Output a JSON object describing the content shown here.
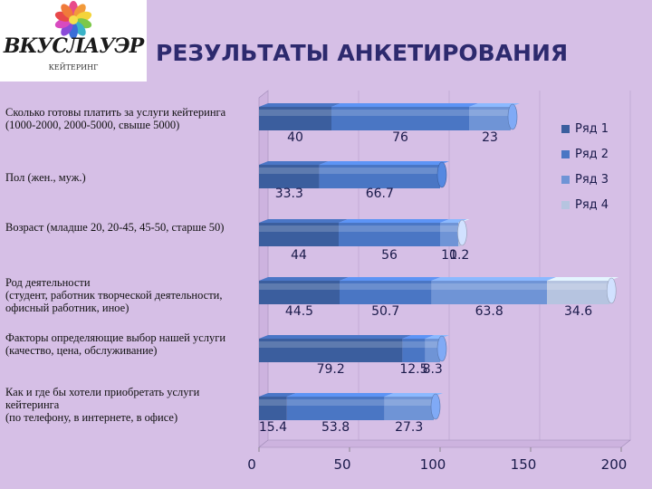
{
  "header": {
    "title": "РЕЗУЛЬТАТЫ АНКЕТИРОВАНИЯ",
    "logo_text": "ВКУСЛАУЭР",
    "logo_subtext": "КЕЙТЕРИНГ"
  },
  "chart_data": {
    "type": "bar",
    "orientation": "horizontal",
    "stacked": true,
    "title": "",
    "categories": [
      "Сколько готовы платить за услуги кейтеринга\n (1000-2000, 2000-5000, свыше 5000)",
      "Пол (жен., муж.)",
      "Возраст (младше 20, 20-45, 45-50, старше 50)",
      "Род деятельности\n(студент, работник творческой деятельности,\n офисный работник, иное)",
      "Факторы определяющие выбор нашей услуги\n(качество, цена, обслуживание)",
      "Как и где бы хотели приобретать услуги\nкейтеринга\n(по телефону, в интернете, в офисе)"
    ],
    "series": [
      {
        "name": "Ряд 1",
        "color": "#3b5e9e",
        "values": [
          40,
          33.3,
          44,
          44.5,
          79.2,
          15.4
        ],
        "labels": [
          "40",
          "33.3",
          "44",
          "44.5",
          "79.2",
          "15.4"
        ]
      },
      {
        "name": "Ряд 2",
        "color": "#4a76c4",
        "values": [
          76,
          66.7,
          56,
          50.7,
          12.5,
          53.8
        ],
        "labels": [
          "76",
          "66.7",
          "56",
          "50.7",
          "12.5",
          "53.8"
        ]
      },
      {
        "name": "Ряд 3",
        "color": "#6f94d6",
        "values": [
          23,
          0,
          10,
          63.8,
          8.3,
          27.3
        ],
        "labels": [
          "23",
          "",
          "10",
          "63.8",
          "8.3",
          "27.3"
        ]
      },
      {
        "name": "Ряд 4",
        "color": "#b6c4e0",
        "values": [
          0,
          0,
          1.2,
          34.6,
          0,
          0
        ],
        "labels": [
          "",
          "",
          "1.2",
          "34.6",
          "",
          ""
        ]
      }
    ],
    "xlim": [
      0,
      200
    ],
    "xticks": [
      "0",
      "50",
      "100",
      "150",
      "200"
    ],
    "legend": "right"
  }
}
